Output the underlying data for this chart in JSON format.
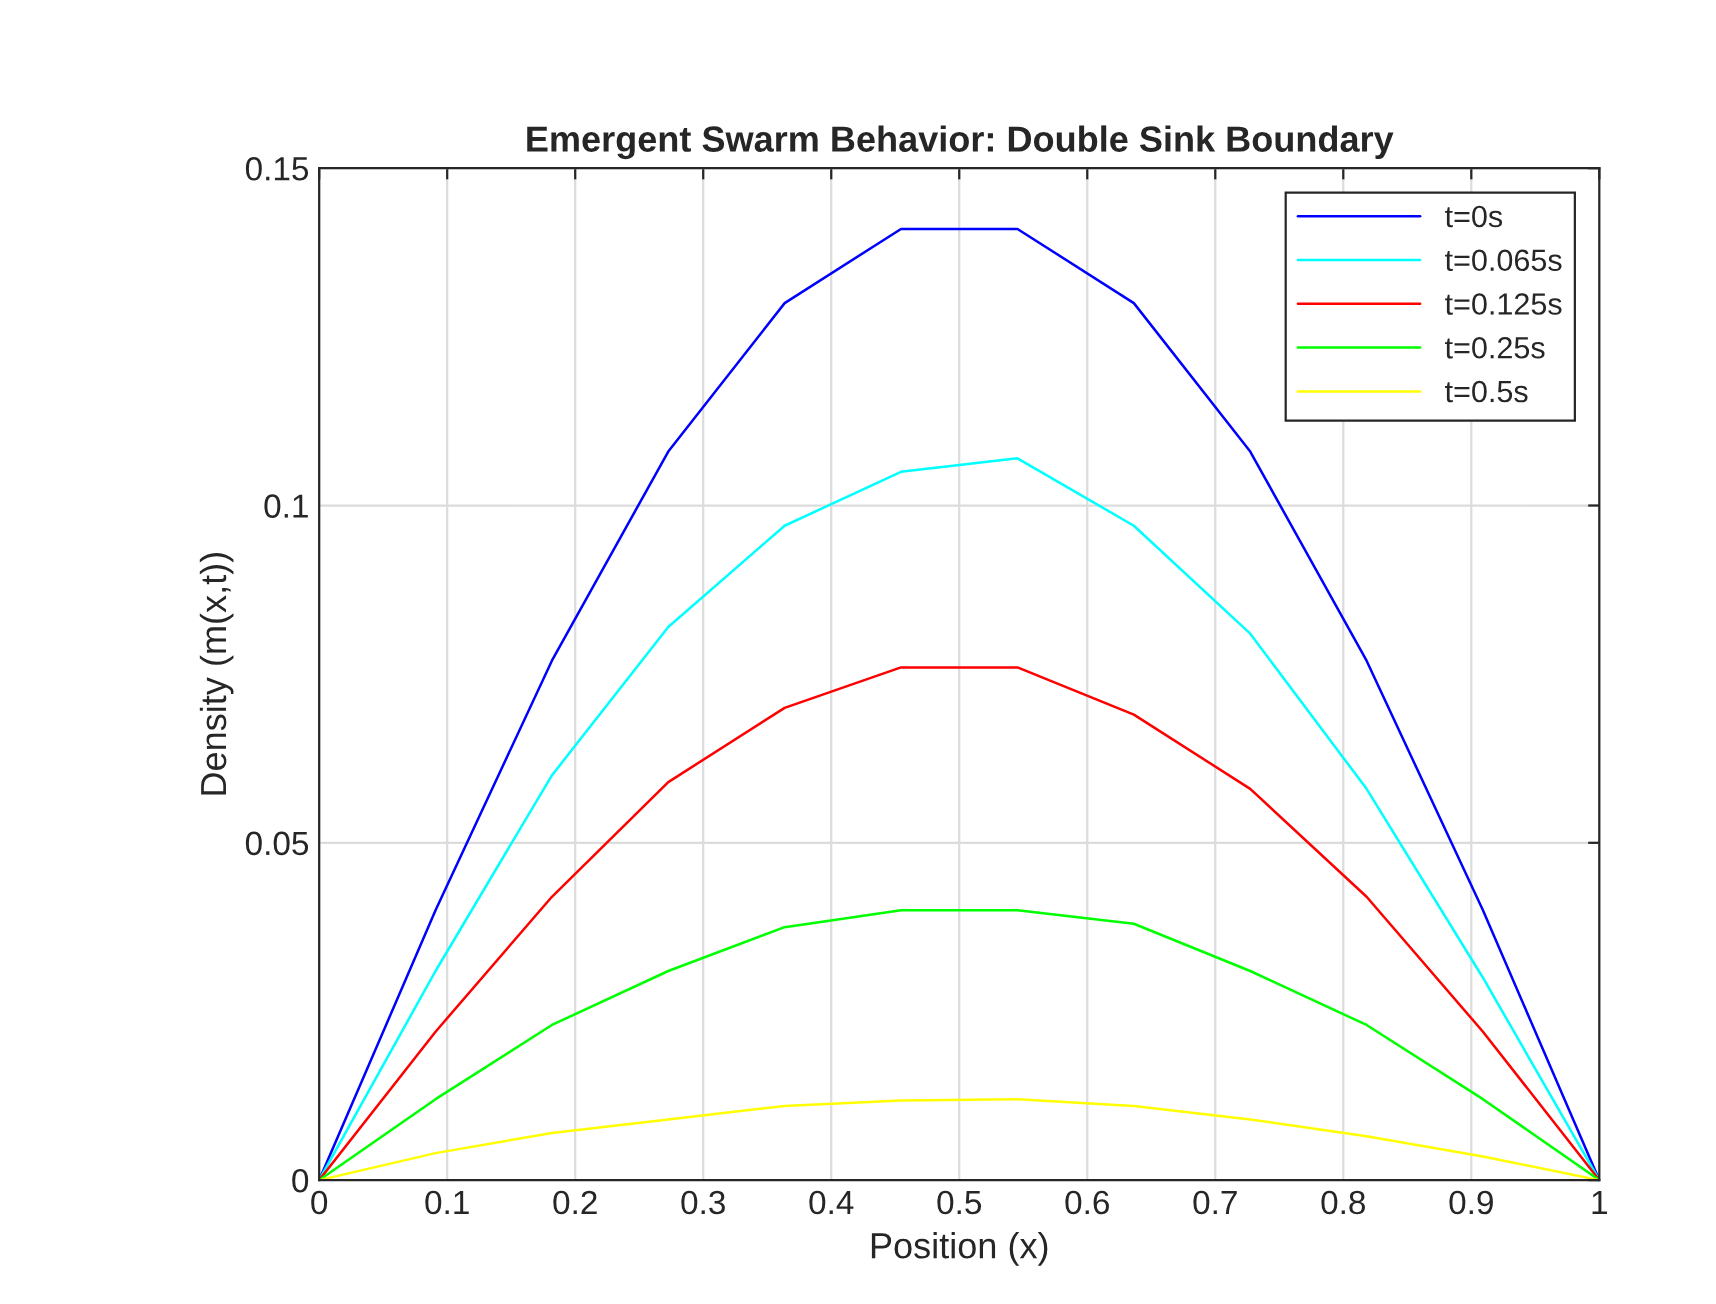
{
  "chart_data": {
    "type": "line",
    "title": "Emergent Swarm Behavior: Double Sink Boundary",
    "xlabel": "Position (x)",
    "ylabel": "Density (m(x,t))",
    "x": [
      0,
      0.0909,
      0.1818,
      0.2727,
      0.3636,
      0.4545,
      0.5455,
      0.6364,
      0.7273,
      0.8182,
      0.9091,
      1
    ],
    "series": [
      {
        "name": "t=0s",
        "color": "#0000ff",
        "values": [
          0,
          0.04,
          0.077,
          0.108,
          0.13,
          0.141,
          0.141,
          0.13,
          0.108,
          0.077,
          0.04,
          0
        ]
      },
      {
        "name": "t=0.065s",
        "color": "#00ffff",
        "values": [
          0,
          0.031,
          0.06,
          0.082,
          0.097,
          0.105,
          0.107,
          0.097,
          0.081,
          0.058,
          0.03,
          0
        ]
      },
      {
        "name": "t=0.125s",
        "color": "#ff0000",
        "values": [
          0,
          0.022,
          0.042,
          0.059,
          0.07,
          0.076,
          0.076,
          0.069,
          0.058,
          0.042,
          0.022,
          0
        ]
      },
      {
        "name": "t=0.25s",
        "color": "#00ff00",
        "values": [
          0,
          0.012,
          0.023,
          0.031,
          0.0375,
          0.04,
          0.04,
          0.038,
          0.031,
          0.023,
          0.012,
          0
        ]
      },
      {
        "name": "t=0.5s",
        "color": "#ffff00",
        "values": [
          0,
          0.004,
          0.007,
          0.009,
          0.011,
          0.0118,
          0.012,
          0.011,
          0.009,
          0.0065,
          0.0035,
          0
        ]
      }
    ],
    "xlim": [
      0,
      1
    ],
    "xticks": [
      0,
      0.1,
      0.2,
      0.3,
      0.4,
      0.5,
      0.6,
      0.7,
      0.8,
      0.9,
      1
    ],
    "ylim": [
      0,
      0.15
    ],
    "yticks": [
      0,
      0.05,
      0.1,
      0.15
    ],
    "grid": true,
    "legend": "top right",
    "marker": "none",
    "line_style": "solid"
  }
}
